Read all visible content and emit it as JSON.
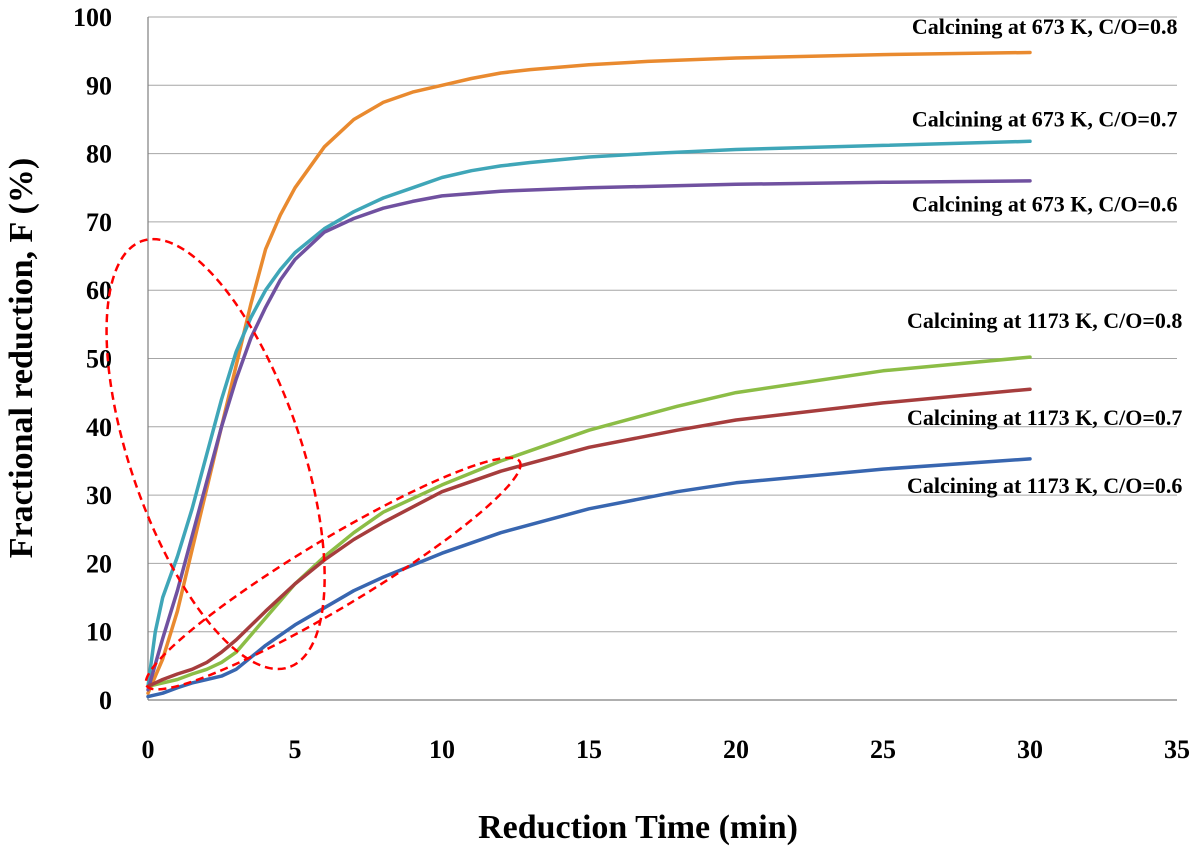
{
  "chart_data": {
    "type": "line",
    "title": "",
    "xlabel": "Reduction Time (min)",
    "ylabel": "Fractional reduction,  F (%)",
    "xlim": [
      0,
      35
    ],
    "ylim": [
      0,
      100
    ],
    "xticks": [
      0,
      5,
      10,
      15,
      20,
      25,
      30,
      35
    ],
    "yticks": [
      0,
      10,
      20,
      30,
      40,
      50,
      60,
      70,
      80,
      90,
      100
    ],
    "grid": "horizontal",
    "series": [
      {
        "name": "Calcining at 673 K, C/O=0.8",
        "color": "#e98a2f",
        "x": [
          0,
          0.5,
          1,
          1.5,
          2,
          2.5,
          3,
          3.5,
          4,
          4.5,
          5,
          5.5,
          6,
          7,
          8,
          9,
          10,
          11,
          12,
          13,
          15,
          17,
          20,
          25,
          30
        ],
        "y": [
          1,
          6,
          13,
          22,
          31,
          40,
          49,
          58,
          66,
          71,
          75,
          78,
          81,
          85,
          87.5,
          89,
          90,
          91,
          91.8,
          92.3,
          93,
          93.5,
          94,
          94.5,
          94.8
        ]
      },
      {
        "name": "Calcining at 673 K, C/O=0.7",
        "color": "#3fa6b8",
        "x": [
          0,
          0.25,
          0.5,
          1,
          1.5,
          2,
          2.5,
          3,
          3.5,
          4,
          4.5,
          5,
          6,
          7,
          8,
          9,
          10,
          11,
          12,
          13,
          15,
          17,
          20,
          25,
          30
        ],
        "y": [
          2,
          10,
          15,
          21,
          28,
          36,
          44,
          51,
          56,
          60,
          63,
          65.5,
          69,
          71.5,
          73.5,
          75,
          76.5,
          77.5,
          78.2,
          78.7,
          79.5,
          80,
          80.6,
          81.2,
          81.8
        ]
      },
      {
        "name": "Calcining at 673 K, C/O=0.6",
        "color": "#7051a0",
        "x": [
          0,
          0.5,
          1,
          1.5,
          2,
          2.5,
          3,
          3.5,
          4,
          4.5,
          5,
          5.5,
          6,
          7,
          8,
          9,
          10,
          12,
          15,
          20,
          25,
          30
        ],
        "y": [
          1.5,
          9,
          16,
          24,
          32,
          40,
          47,
          53,
          57.5,
          61.5,
          64.5,
          66.5,
          68.5,
          70.5,
          72,
          73,
          73.8,
          74.5,
          75,
          75.5,
          75.8,
          76
        ]
      },
      {
        "name": "Calcining at 1173 K, C/O=0.8",
        "color": "#8cbd46",
        "x": [
          0,
          0.5,
          1,
          1.5,
          2,
          2.5,
          3,
          4,
          5,
          6,
          7,
          8,
          10,
          12,
          15,
          18,
          20,
          25,
          30
        ],
        "y": [
          2,
          2.5,
          3,
          3.8,
          4.5,
          5.5,
          7,
          12,
          17,
          21,
          24.5,
          27.5,
          31.5,
          35,
          39.5,
          43,
          45,
          48.2,
          50.2
        ]
      },
      {
        "name": "Calcining at 1173 K, C/O=0.7",
        "color": "#a63d3d",
        "x": [
          0,
          0.5,
          1,
          1.5,
          2,
          2.5,
          3,
          4,
          5,
          6,
          7,
          8,
          10,
          12,
          15,
          18,
          20,
          25,
          30
        ],
        "y": [
          2,
          3,
          3.8,
          4.5,
          5.5,
          7,
          8.8,
          13,
          17,
          20.5,
          23.5,
          26,
          30.5,
          33.5,
          37,
          39.5,
          41,
          43.5,
          45.5
        ]
      },
      {
        "name": "Calcining at 1173 K, C/O=0.6",
        "color": "#3866b0",
        "x": [
          0,
          0.5,
          1,
          1.5,
          2,
          2.5,
          3,
          4,
          5,
          6,
          7,
          8,
          10,
          12,
          15,
          18,
          20,
          25,
          30
        ],
        "y": [
          0.5,
          1,
          1.8,
          2.5,
          3,
          3.5,
          4.5,
          8,
          11,
          13.5,
          16,
          18,
          21.5,
          24.5,
          28,
          30.5,
          31.8,
          33.8,
          35.3
        ]
      }
    ],
    "labels": [
      {
        "text": "Calcining at 673 K, C/O=0.8",
        "x": 30.5,
        "y": 97.5
      },
      {
        "text": "Calcining at 673 K, C/O=0.7",
        "x": 30.5,
        "y": 84
      },
      {
        "text": "Calcining at 673 K, C/O=0.6",
        "x": 30.5,
        "y": 71.5
      },
      {
        "text": "Calcining at 1173 K, C/O=0.8",
        "x": 30.5,
        "y": 54.5
      },
      {
        "text": "Calcining at 1173 K, C/O=0.7",
        "x": 30.5,
        "y": 40.3
      },
      {
        "text": "Calcining at 1173 K, C/O=0.6",
        "x": 30.5,
        "y": 30.3
      }
    ],
    "highlights": [
      {
        "type": "ellipse",
        "encloses": "673 K curves, t = 0–4.8 min",
        "center": [
          2.3,
          36
        ],
        "rx_data": 2.9,
        "ry_data": 33,
        "tilt_deg": -19
      },
      {
        "type": "ellipse",
        "encloses": "1173 K curves, t = 0–12.5 min",
        "center": [
          6.3,
          18.5
        ],
        "rx_data": 7.4,
        "ry_data": 5,
        "tilt_deg": -31
      }
    ]
  }
}
